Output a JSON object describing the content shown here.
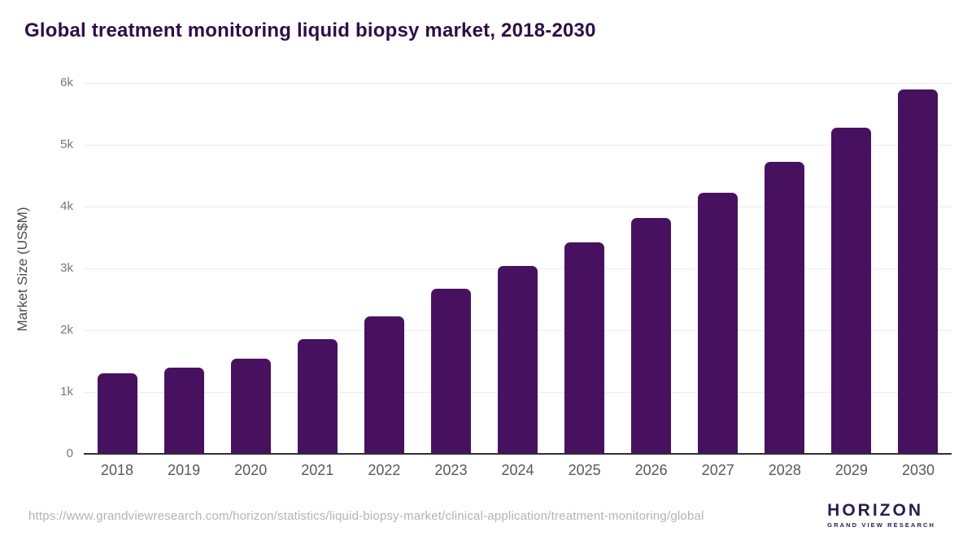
{
  "title": "Global treatment monitoring liquid biopsy market, 2018-2030",
  "chart_data": {
    "type": "bar",
    "title": "Global treatment monitoring liquid biopsy market, 2018-2030",
    "categories": [
      "2018",
      "2019",
      "2020",
      "2021",
      "2022",
      "2023",
      "2024",
      "2025",
      "2026",
      "2027",
      "2028",
      "2029",
      "2030"
    ],
    "values": [
      1300,
      1400,
      1540,
      1850,
      2230,
      2670,
      3040,
      3420,
      3820,
      4230,
      4720,
      5270,
      5890
    ],
    "xlabel": "",
    "ylabel": "Market Size (US$M)",
    "ylim": [
      0,
      6000
    ],
    "ytick_values": [
      0,
      1000,
      2000,
      3000,
      4000,
      5000,
      6000
    ],
    "ytick_labels": [
      "0",
      "1k",
      "2k",
      "3k",
      "4k",
      "5k",
      "6k"
    ],
    "grid": true,
    "legend": "none",
    "bar_color": "#48115f"
  },
  "colors": {
    "title_text": "#2e0e47",
    "bar": "#48115f",
    "gridline": "#ececec",
    "axis_line": "#303034",
    "y_tick_text": "#77777a",
    "x_tick_text": "#58585a",
    "url_text": "#b3b3b3",
    "logo_purple": "#2e164a",
    "logo_blue": "#63cbf2"
  },
  "footer": {
    "source_url": "https://www.grandviewresearch.com/horizon/statistics/liquid-biopsy-market/clinical-application/treatment-monitoring/global",
    "logo": {
      "name": "HORIZON",
      "tagline": "GRAND VIEW RESEARCH"
    }
  }
}
